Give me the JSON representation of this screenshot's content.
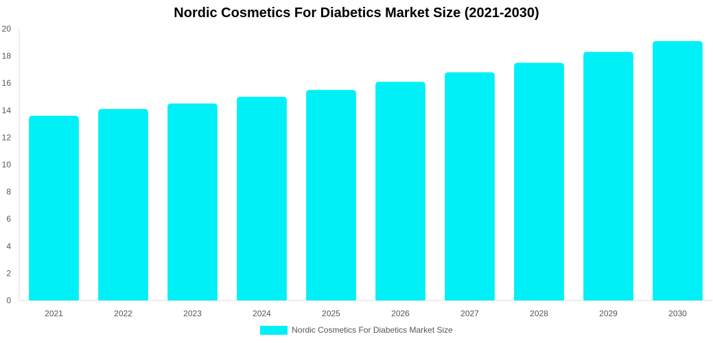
{
  "chart_data": {
    "type": "bar",
    "title": "Nordic Cosmetics For Diabetics Market Size (2021-2030)",
    "categories": [
      "2021",
      "2022",
      "2023",
      "2024",
      "2025",
      "2026",
      "2027",
      "2028",
      "2029",
      "2030"
    ],
    "series": [
      {
        "name": "Nordic Cosmetics For Diabetics Market Size",
        "values": [
          13.6,
          14.1,
          14.5,
          15.0,
          15.5,
          16.1,
          16.8,
          17.5,
          18.3,
          19.1
        ],
        "color": "#00F0F8"
      }
    ],
    "ylim": [
      0,
      20
    ],
    "yticks": [
      "0",
      "2",
      "4",
      "6",
      "8",
      "10",
      "12",
      "14",
      "16",
      "18",
      "20"
    ],
    "grid": false,
    "legend_position": "bottom"
  }
}
